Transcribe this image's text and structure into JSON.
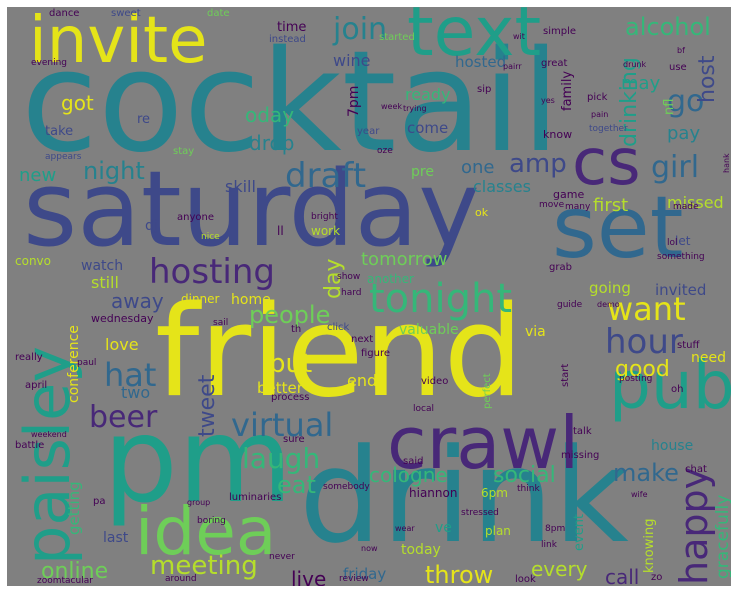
{
  "palette": {
    "background": "#808080",
    "yellow": "#e5e419",
    "lime": "#b5de2b",
    "green": "#6ece58",
    "seagreen": "#35b779",
    "teal": "#1f9e89",
    "blue": "#26828e",
    "steel": "#31688e",
    "indigo": "#3e4989",
    "purple": "#482878",
    "darkpurple": "#440154"
  },
  "words": {
    "cocktail": "cocktail",
    "saturday": "saturday",
    "friend": "friend",
    "drink": "drink",
    "pm": "pm",
    "set": "set",
    "invite": "invite",
    "text": "text",
    "pub": "pub",
    "crawl": "crawl",
    "idea": "idea",
    "paisley": "paisley",
    "cs": "cs",
    "hosting": "hosting",
    "tonight": "tonight",
    "hour": "hour",
    "happy": "happy",
    "want": "want",
    "virtual": "virtual",
    "laugh": "laugh",
    "beer": "beer",
    "hat": "hat",
    "draft": "draft",
    "meeting": "meeting",
    "join": "join",
    "go": "go",
    "girl": "girl",
    "amp": "amp",
    "night": "night",
    "throw": "throw",
    "alcohol": "alcohol",
    "drinking": "drinking",
    "host": "host",
    "put": "put",
    "people": "people",
    "eat": "eat",
    "make": "make",
    "social": "social",
    "cologne": "cologne",
    "tweet": "tweet",
    "online": "online",
    "good": "good",
    "gracefully": "gracefully",
    "every": "every",
    "live": "live",
    "call": "call",
    "friday": "friday",
    "ready": "ready",
    "oday": "oday",
    "wine": "wine",
    "day": "day",
    "tomorrow": "tomorrow",
    "away": "away",
    "still": "still",
    "watch": "watch",
    "missed": "missed",
    "first": "first",
    "going": "going",
    "invited": "invited",
    "pay": "pay",
    "may": "may",
    "classes": "classes",
    "one": "one",
    "drop": "drop",
    "skill": "skill",
    "new": "new",
    "got": "got",
    "hosted": "hosted",
    "come": "come",
    "love": "love",
    "end": "end",
    "better": "better",
    "two": "two",
    "conference": "conference",
    "valuable": "valuable",
    "via": "via",
    "home": "home",
    "dinner": "dinner",
    "family": "family",
    "getting": "getting",
    "ve": "ve",
    "today": "today",
    "house": "house",
    "last": "last",
    "nfl": "nfl",
    "need": "need",
    "time": "time",
    "take": "take",
    "re": "re",
    "dj": "dj",
    "ll": "ll",
    "work": "work",
    "let": "let",
    "convo": "convo",
    "know": "know",
    "game": "game",
    "hiannon": "hiannon",
    "6pm": "6pm",
    "7pm": "7pm",
    "pre": "pre",
    "ok": "ok",
    "wednesday": "wednesday",
    "knowing": "knowing",
    "event": "event",
    "plan": "plan",
    "another": "another",
    "dance": "dance",
    "sweet": "sweet",
    "date": "date",
    "started": "started",
    "instead": "instead",
    "simple": "simple",
    "great": "great",
    "evening": "evening",
    "year": "year",
    "sip": "sip",
    "pick": "pick",
    "together": "together",
    "use": "use",
    "appears": "appears",
    "stay": "stay",
    "anyone": "anyone",
    "nice": "nice",
    "bright": "bright",
    "move": "move",
    "many": "many",
    "made": "made",
    "something": "something",
    "grab": "grab",
    "show": "show",
    "hard": "hard",
    "guide": "guide",
    "demo": "demo",
    "click": "click",
    "next": "next",
    "figure": "figure",
    "sail": "sail",
    "stuff": "stuff",
    "posting": "posting",
    "really": "really",
    "april": "april",
    "paul": "paul",
    "process": "process",
    "video": "video",
    "perfect": "perfect",
    "start": "start",
    "local": "local",
    "battle": "battle",
    "weekend": "weekend",
    "sure": "sure",
    "said": "said",
    "talk": "talk",
    "missing": "missing",
    "chat": "chat",
    "somebody": "somebody",
    "think": "think",
    "luminaries": "luminaries",
    "group": "group",
    "stressed": "stressed",
    "wife": "wife",
    "link": "link",
    "8pm": "8pm",
    "zo": "zo",
    "never": "never",
    "around": "around",
    "review": "review",
    "look": "look",
    "zoomtacular": "zoomtacular",
    "boring": "boring",
    "sp": "sp",
    "pa": "pa",
    "yes": "yes",
    "hank": "hank",
    "oh": "oh",
    "lol": "lol",
    "th": "th",
    "try": "try",
    "bf": "bf",
    "wit": "wit",
    "week": "week",
    "pain": "pain",
    "drunk": "drunk",
    "oze": "oze",
    "now": "now",
    "wear": "wear",
    "trying": "trying",
    "ma": "ma",
    "pairr": "pairr"
  }
}
